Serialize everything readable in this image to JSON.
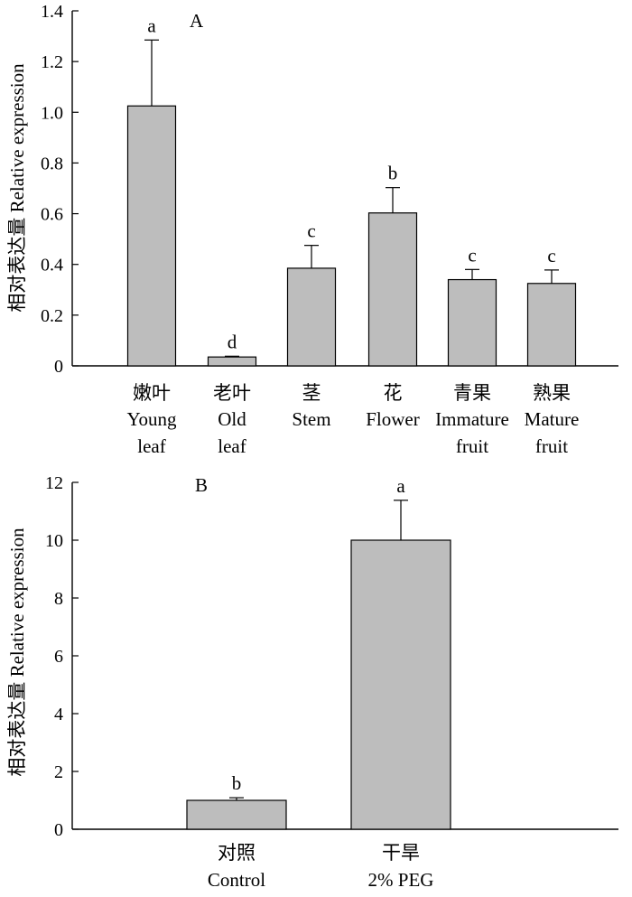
{
  "chart_data": [
    {
      "type": "bar",
      "panel_label": "A",
      "ylabel": "相对表达量 Relative expression",
      "ylim": [
        0,
        1.4
      ],
      "yticks": [
        "0",
        "0.2",
        "0.4",
        "0.6",
        "0.8",
        "1.0",
        "1.2",
        "1.4"
      ],
      "categories": [
        {
          "zh": "嫩叶",
          "en": [
            "Young",
            "leaf"
          ]
        },
        {
          "zh": "老叶",
          "en": [
            "Old",
            "leaf"
          ]
        },
        {
          "zh": "茎",
          "en": [
            "Stem"
          ]
        },
        {
          "zh": "花",
          "en": [
            "Flower"
          ]
        },
        {
          "zh": "青果",
          "en": [
            "Immature",
            "fruit"
          ]
        },
        {
          "zh": "熟果",
          "en": [
            "Mature",
            "fruit"
          ]
        }
      ],
      "values": [
        1.025,
        0.035,
        0.385,
        0.603,
        0.34,
        0.325
      ],
      "errors": [
        0.26,
        0.003,
        0.09,
        0.1,
        0.04,
        0.053
      ],
      "significance": [
        "a",
        "d",
        "c",
        "b",
        "c",
        "c"
      ],
      "bar_color": "#bdbdbd"
    },
    {
      "type": "bar",
      "panel_label": "B",
      "ylabel": "相对表达量 Relative expression",
      "ylim": [
        0,
        12
      ],
      "yticks": [
        "0",
        "2",
        "4",
        "6",
        "8",
        "10",
        "12"
      ],
      "categories": [
        {
          "zh": "对照",
          "en": [
            "Control"
          ]
        },
        {
          "zh": "干旱",
          "en": [
            "2% PEG"
          ]
        }
      ],
      "values": [
        1.0,
        10.0
      ],
      "errors": [
        0.09,
        1.38
      ],
      "significance": [
        "b",
        "a"
      ],
      "bar_color": "#bdbdbd"
    }
  ]
}
